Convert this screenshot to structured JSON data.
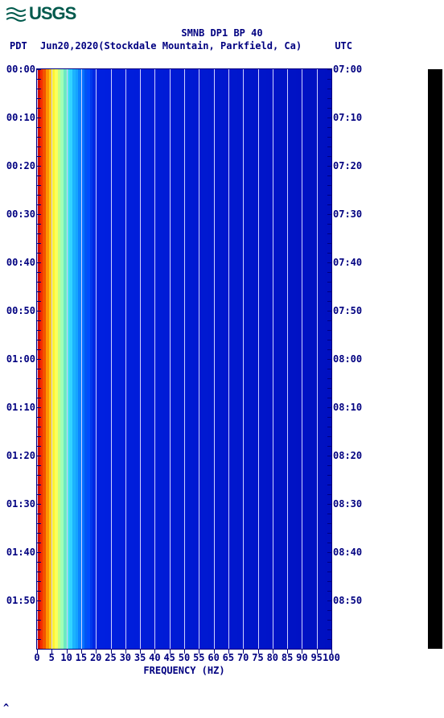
{
  "logo_text": "USGS",
  "title": "SMNB DP1 BP 40",
  "subtitle": {
    "pdt": "PDT",
    "date": "Jun20,2020(Stockdale Mountain, Parkfield, Ca)",
    "utc": "UTC"
  },
  "xlabel": "FREQUENCY (HZ)",
  "spectrogram": {
    "type": "spectrogram",
    "freq_min": 0,
    "freq_max": 100,
    "xtick_step": 5,
    "xticks": [
      0,
      5,
      10,
      15,
      20,
      25,
      30,
      35,
      40,
      45,
      50,
      55,
      60,
      65,
      70,
      75,
      80,
      85,
      90,
      95,
      100
    ],
    "left_times": [
      "00:00",
      "00:10",
      "00:20",
      "00:30",
      "00:40",
      "00:50",
      "01:00",
      "01:10",
      "01:20",
      "01:30",
      "01:40",
      "01:50"
    ],
    "right_times": [
      "07:00",
      "07:10",
      "07:20",
      "07:30",
      "07:40",
      "07:50",
      "08:00",
      "08:10",
      "08:20",
      "08:30",
      "08:40",
      "08:50"
    ],
    "minor_tick_count": 60,
    "gradient": [
      {
        "hz": 0,
        "color": "#c70000"
      },
      {
        "hz": 2,
        "color": "#ff3a00"
      },
      {
        "hz": 4,
        "color": "#ffb400"
      },
      {
        "hz": 6,
        "color": "#ffff40"
      },
      {
        "hz": 9,
        "color": "#80ffc0"
      },
      {
        "hz": 12,
        "color": "#20c0ff"
      },
      {
        "hz": 16,
        "color": "#0060ff"
      },
      {
        "hz": 20,
        "color": "#0020e0"
      },
      {
        "hz": 100,
        "color": "#0010c0"
      }
    ],
    "grid_color": "#cfd2ff",
    "axis_color": "#000080"
  },
  "caret": "^"
}
